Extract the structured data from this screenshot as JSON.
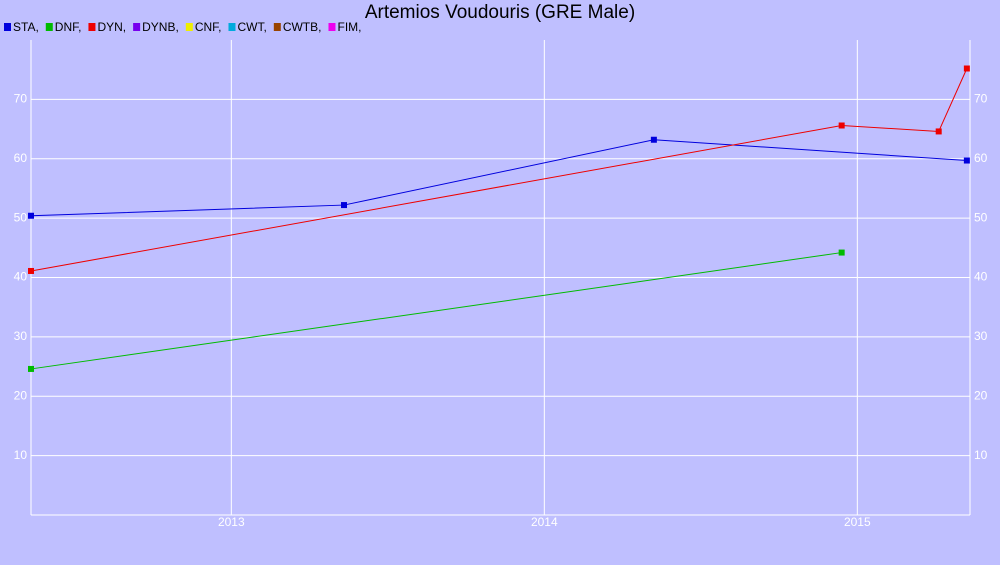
{
  "chart_data": {
    "type": "line",
    "title": "Artemios Voudouris (GRE Male)",
    "series": [
      {
        "name": "STA,",
        "color": "#0000dd",
        "x": [
          2012.36,
          2013.36,
          2014.35,
          2015.35
        ],
        "values": [
          50.4,
          52.2,
          63.2,
          59.7
        ]
      },
      {
        "name": "DNF,",
        "color": "#00bb00",
        "x": [
          2012.36,
          2014.95
        ],
        "values": [
          24.6,
          44.2
        ]
      },
      {
        "name": "DYN,",
        "color": "#ee0000",
        "x": [
          2012.36,
          2014.95,
          2015.26,
          2015.35
        ],
        "values": [
          41.1,
          65.6,
          64.6,
          75.2
        ]
      },
      {
        "name": "DYNB,",
        "color": "#7700ee",
        "x": [],
        "values": []
      },
      {
        "name": "CNF,",
        "color": "#eeee00",
        "x": [],
        "values": []
      },
      {
        "name": "CWT,",
        "color": "#00aadd",
        "x": [],
        "values": []
      },
      {
        "name": "CWTB,",
        "color": "#994400",
        "x": [],
        "values": []
      },
      {
        "name": "FIM,",
        "color": "#ee00ee",
        "x": [],
        "values": []
      }
    ],
    "xlim": [
      2012.36,
      2015.36
    ],
    "xticks": [
      2013,
      2014,
      2015
    ],
    "ylim": [
      0,
      80
    ],
    "yticks": [
      10,
      20,
      30,
      40,
      50,
      60,
      70
    ],
    "grid": true
  }
}
